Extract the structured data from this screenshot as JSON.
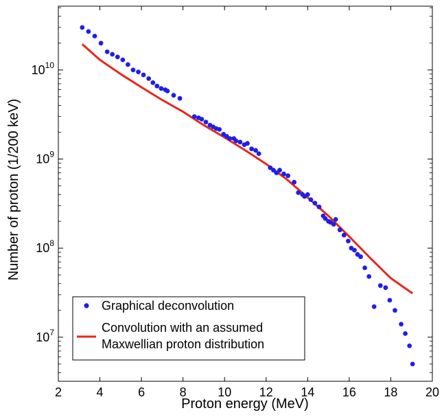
{
  "chart_data": {
    "type": "scatter",
    "title": "",
    "xlabel": "Proton energy (MeV)",
    "ylabel": "Number of proton (1/200 keV)",
    "xlim": [
      2,
      20
    ],
    "ylim": [
      3200000.0,
      52000000000.0
    ],
    "yscale": "log",
    "grid": false,
    "legend_position": "bottom-left",
    "x_ticks": [
      2,
      4,
      6,
      8,
      10,
      12,
      14,
      16,
      18,
      20
    ],
    "x_tick_labels": [
      "2",
      "4",
      "6",
      "8",
      "10",
      "12",
      "14",
      "16",
      "18",
      "20"
    ],
    "y_ticks": [
      {
        "value": 10000000.0,
        "base": "10",
        "exp": "7"
      },
      {
        "value": 100000000.0,
        "base": "10",
        "exp": "8"
      },
      {
        "value": 1000000000.0,
        "base": "10",
        "exp": "9"
      },
      {
        "value": 10000000000.0,
        "base": "10",
        "exp": "10"
      }
    ],
    "series": [
      {
        "name": "Graphical deconvolution",
        "type": "scatter",
        "color": "#1f1fe6",
        "x": [
          3.15,
          3.45,
          3.75,
          4.05,
          4.35,
          4.6,
          4.85,
          5.1,
          5.35,
          5.6,
          5.85,
          6.1,
          6.35,
          6.55,
          6.75,
          6.95,
          7.15,
          7.25,
          7.55,
          7.85,
          8.55,
          8.75,
          8.9,
          9.1,
          9.3,
          9.45,
          9.6,
          9.75,
          9.95,
          10.1,
          10.25,
          10.45,
          10.55,
          10.75,
          10.95,
          11.1,
          11.3,
          11.5,
          11.65,
          12.2,
          12.35,
          12.5,
          12.65,
          12.85,
          13.05,
          13.35,
          13.55,
          13.75,
          13.85,
          14.0,
          14.15,
          14.35,
          14.55,
          14.75,
          14.85,
          15.0,
          15.1,
          15.25,
          15.35,
          15.55,
          15.75,
          15.95,
          16.1,
          16.25,
          16.4,
          16.55,
          16.75,
          16.95,
          17.2,
          17.5,
          17.75,
          17.95,
          18.2,
          18.5,
          18.7,
          18.9,
          19.05
        ],
        "y": [
          30000000000.0,
          27000000000.0,
          24000000000.0,
          20000000000.0,
          16000000000.0,
          15000000000.0,
          14000000000.0,
          13000000000.0,
          11500000000.0,
          10000000000.0,
          9500000000.0,
          8800000000.0,
          8000000000.0,
          7200000000.0,
          6600000000.0,
          6200000000.0,
          6000000000.0,
          5800000000.0,
          5200000000.0,
          4800000000.0,
          3000000000.0,
          2900000000.0,
          2800000000.0,
          2600000000.0,
          2400000000.0,
          2300000000.0,
          2200000000.0,
          2150000000.0,
          1900000000.0,
          1800000000.0,
          1700000000.0,
          1700000000.0,
          1600000000.0,
          1550000000.0,
          1450000000.0,
          1500000000.0,
          1300000000.0,
          1250000000.0,
          1150000000.0,
          800000000.0,
          750000000.0,
          700000000.0,
          750000000.0,
          680000000.0,
          650000000.0,
          550000000.0,
          420000000.0,
          400000000.0,
          380000000.0,
          400000000.0,
          350000000.0,
          320000000.0,
          290000000.0,
          230000000.0,
          215000000.0,
          200000000.0,
          195000000.0,
          185000000.0,
          210000000.0,
          160000000.0,
          140000000.0,
          120000000.0,
          100000000.0,
          95000000.0,
          85000000.0,
          80000000.0,
          60000000.0,
          48000000.0,
          22000000.0,
          38000000.0,
          36000000.0,
          26000000.0,
          20000000.0,
          14000000.0,
          11000000.0,
          8000000.0,
          5000000.0
        ]
      },
      {
        "name": "Convolution with an assumed Maxwellian proton distribution",
        "type": "line",
        "color": "#e8261a",
        "x": [
          3.15,
          4,
          5,
          6,
          7,
          8,
          9,
          10,
          11,
          12,
          13,
          14,
          15,
          16,
          17,
          18,
          19.05
        ],
        "y": [
          19500000000.0,
          13000000000.0,
          9000000000.0,
          6400000000.0,
          4600000000.0,
          3400000000.0,
          2400000000.0,
          1750000000.0,
          1250000000.0,
          880000000.0,
          590000000.0,
          370000000.0,
          230000000.0,
          135000000.0,
          78000000.0,
          46000000.0,
          31000000.0
        ]
      }
    ],
    "legend": {
      "entries": [
        {
          "lines": [
            "Graphical deconvolution"
          ]
        },
        {
          "lines": [
            "Convolution with an assumed",
            "Maxwellian proton distribution"
          ]
        }
      ]
    }
  }
}
